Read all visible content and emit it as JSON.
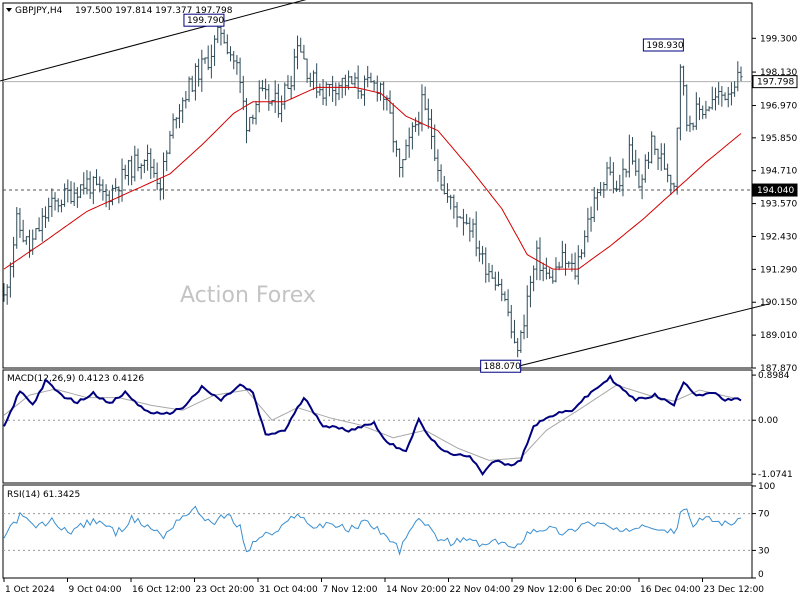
{
  "header": {
    "symbol_label": "GBPJPY,H4",
    "ohlc": "197.500 197.814 197.377 197.798"
  },
  "watermark": "Action Forex",
  "colors": {
    "price_line": "#2e4a57",
    "sma": "#d40000",
    "macd": "#00007f",
    "macd_signal": "#a8a8a8",
    "rsi": "#3b8fd0",
    "trendline": "#000000"
  },
  "chart_data": [
    {
      "type": "ohlc",
      "panel": "price",
      "yticks": [
        "199.300",
        "198.130",
        "196.970",
        "195.850",
        "194.710",
        "193.570",
        "192.430",
        "191.290",
        "190.150",
        "189.010",
        "187.870"
      ],
      "ylim": [
        187.87,
        200.49
      ],
      "current_price_label": "197.798",
      "current_price": 197.798,
      "support_level_label": "194.040",
      "support_level": 194.04,
      "annotations": [
        {
          "text": "199.790",
          "value": 199.79,
          "kind": "swing-high"
        },
        {
          "text": "198.930",
          "value": 198.93,
          "kind": "swing-high"
        },
        {
          "text": "188.070",
          "value": 188.07,
          "kind": "swing-low"
        }
      ],
      "path_keypoints": [
        {
          "t": 0,
          "v": 190.3
        },
        {
          "t": 4,
          "v": 192.9
        },
        {
          "t": 8,
          "v": 192.0
        },
        {
          "t": 14,
          "v": 193.4
        },
        {
          "t": 20,
          "v": 193.9
        },
        {
          "t": 26,
          "v": 194.3
        },
        {
          "t": 32,
          "v": 193.8
        },
        {
          "t": 38,
          "v": 194.6
        },
        {
          "t": 44,
          "v": 195.3
        },
        {
          "t": 49,
          "v": 194.3
        },
        {
          "t": 54,
          "v": 196.8
        },
        {
          "t": 60,
          "v": 198.0
        },
        {
          "t": 64,
          "v": 198.6
        },
        {
          "t": 68,
          "v": 199.6
        },
        {
          "t": 73,
          "v": 198.3
        },
        {
          "t": 76,
          "v": 196.4
        },
        {
          "t": 80,
          "v": 197.3
        },
        {
          "t": 86,
          "v": 197.0
        },
        {
          "t": 90,
          "v": 198.0
        },
        {
          "t": 92,
          "v": 199.3
        },
        {
          "t": 96,
          "v": 197.9
        },
        {
          "t": 100,
          "v": 197.5
        },
        {
          "t": 106,
          "v": 197.8
        },
        {
          "t": 112,
          "v": 197.6
        },
        {
          "t": 118,
          "v": 197.7
        },
        {
          "t": 121,
          "v": 196.5
        },
        {
          "t": 124,
          "v": 194.6
        },
        {
          "t": 128,
          "v": 196.0
        },
        {
          "t": 131,
          "v": 197.0
        },
        {
          "t": 134,
          "v": 196.0
        },
        {
          "t": 138,
          "v": 193.9
        },
        {
          "t": 142,
          "v": 193.3
        },
        {
          "t": 146,
          "v": 192.9
        },
        {
          "t": 150,
          "v": 191.6
        },
        {
          "t": 155,
          "v": 190.9
        },
        {
          "t": 158,
          "v": 189.8
        },
        {
          "t": 160,
          "v": 188.5
        },
        {
          "t": 162,
          "v": 188.9
        },
        {
          "t": 164,
          "v": 190.3
        },
        {
          "t": 167,
          "v": 191.7
        },
        {
          "t": 171,
          "v": 190.9
        },
        {
          "t": 175,
          "v": 191.6
        },
        {
          "t": 179,
          "v": 191.2
        },
        {
          "t": 183,
          "v": 193.0
        },
        {
          "t": 186,
          "v": 193.8
        },
        {
          "t": 189,
          "v": 194.9
        },
        {
          "t": 192,
          "v": 193.9
        },
        {
          "t": 196,
          "v": 195.3
        },
        {
          "t": 199,
          "v": 194.2
        },
        {
          "t": 203,
          "v": 195.6
        },
        {
          "t": 207,
          "v": 194.9
        },
        {
          "t": 210,
          "v": 194.3
        },
        {
          "t": 212,
          "v": 198.5
        },
        {
          "t": 214,
          "v": 196.4
        },
        {
          "t": 218,
          "v": 196.8
        },
        {
          "t": 222,
          "v": 197.1
        },
        {
          "t": 226,
          "v": 197.4
        },
        {
          "t": 229,
          "v": 197.8
        },
        {
          "t": 231,
          "v": 197.8
        }
      ],
      "sma_keypoints": [
        {
          "t": 0,
          "v": 191.3
        },
        {
          "t": 12,
          "v": 192.2
        },
        {
          "t": 26,
          "v": 193.3
        },
        {
          "t": 40,
          "v": 194.0
        },
        {
          "t": 52,
          "v": 194.6
        },
        {
          "t": 62,
          "v": 195.6
        },
        {
          "t": 72,
          "v": 196.7
        },
        {
          "t": 78,
          "v": 197.1
        },
        {
          "t": 88,
          "v": 197.1
        },
        {
          "t": 98,
          "v": 197.6
        },
        {
          "t": 110,
          "v": 197.6
        },
        {
          "t": 118,
          "v": 197.4
        },
        {
          "t": 126,
          "v": 196.6
        },
        {
          "t": 136,
          "v": 196.1
        },
        {
          "t": 146,
          "v": 194.8
        },
        {
          "t": 156,
          "v": 193.4
        },
        {
          "t": 164,
          "v": 191.8
        },
        {
          "t": 172,
          "v": 191.3
        },
        {
          "t": 180,
          "v": 191.3
        },
        {
          "t": 190,
          "v": 192.1
        },
        {
          "t": 200,
          "v": 193.0
        },
        {
          "t": 210,
          "v": 194.0
        },
        {
          "t": 220,
          "v": 195.0
        },
        {
          "t": 231,
          "v": 196.0
        }
      ],
      "trendlines": [
        {
          "from": {
            "t": -2,
            "v": 197.8
          },
          "to": {
            "t": 100,
            "v": 200.8
          }
        },
        {
          "from": {
            "t": 160,
            "v": 187.9
          },
          "to": {
            "t": 240,
            "v": 190.1
          }
        }
      ]
    },
    {
      "type": "line",
      "panel": "macd",
      "label": "MACD(12,26,9) 0.4123 0.4126",
      "yticks": [
        "0.8984",
        "0.00",
        "-1.0741"
      ],
      "ylim": [
        -1.25,
        0.98
      ],
      "macd_keypoints": [
        {
          "t": 0,
          "v": -0.15
        },
        {
          "t": 5,
          "v": 0.6
        },
        {
          "t": 9,
          "v": 0.3
        },
        {
          "t": 13,
          "v": 0.78
        },
        {
          "t": 18,
          "v": 0.5
        },
        {
          "t": 23,
          "v": 0.35
        },
        {
          "t": 28,
          "v": 0.55
        },
        {
          "t": 33,
          "v": 0.32
        },
        {
          "t": 38,
          "v": 0.55
        },
        {
          "t": 44,
          "v": 0.2
        },
        {
          "t": 50,
          "v": 0.1
        },
        {
          "t": 56,
          "v": 0.25
        },
        {
          "t": 62,
          "v": 0.65
        },
        {
          "t": 68,
          "v": 0.4
        },
        {
          "t": 74,
          "v": 0.7
        },
        {
          "t": 78,
          "v": 0.55
        },
        {
          "t": 82,
          "v": -0.3
        },
        {
          "t": 88,
          "v": -0.2
        },
        {
          "t": 94,
          "v": 0.45
        },
        {
          "t": 100,
          "v": -0.1
        },
        {
          "t": 108,
          "v": -0.2
        },
        {
          "t": 116,
          "v": -0.05
        },
        {
          "t": 120,
          "v": -0.45
        },
        {
          "t": 126,
          "v": -0.6
        },
        {
          "t": 130,
          "v": 0.0
        },
        {
          "t": 134,
          "v": -0.4
        },
        {
          "t": 140,
          "v": -0.7
        },
        {
          "t": 146,
          "v": -0.7
        },
        {
          "t": 150,
          "v": -1.05
        },
        {
          "t": 154,
          "v": -0.8
        },
        {
          "t": 158,
          "v": -0.9
        },
        {
          "t": 162,
          "v": -0.8
        },
        {
          "t": 166,
          "v": -0.1
        },
        {
          "t": 172,
          "v": 0.1
        },
        {
          "t": 178,
          "v": 0.2
        },
        {
          "t": 184,
          "v": 0.55
        },
        {
          "t": 190,
          "v": 0.85
        },
        {
          "t": 194,
          "v": 0.6
        },
        {
          "t": 198,
          "v": 0.4
        },
        {
          "t": 204,
          "v": 0.5
        },
        {
          "t": 210,
          "v": 0.3
        },
        {
          "t": 213,
          "v": 0.78
        },
        {
          "t": 217,
          "v": 0.5
        },
        {
          "t": 222,
          "v": 0.55
        },
        {
          "t": 226,
          "v": 0.4
        },
        {
          "t": 231,
          "v": 0.41
        }
      ],
      "signal_keypoints": [
        {
          "t": 0,
          "v": 0.1
        },
        {
          "t": 8,
          "v": 0.5
        },
        {
          "t": 16,
          "v": 0.62
        },
        {
          "t": 26,
          "v": 0.45
        },
        {
          "t": 36,
          "v": 0.45
        },
        {
          "t": 46,
          "v": 0.3
        },
        {
          "t": 56,
          "v": 0.2
        },
        {
          "t": 66,
          "v": 0.5
        },
        {
          "t": 76,
          "v": 0.6
        },
        {
          "t": 84,
          "v": 0.0
        },
        {
          "t": 92,
          "v": 0.25
        },
        {
          "t": 102,
          "v": 0.05
        },
        {
          "t": 112,
          "v": -0.1
        },
        {
          "t": 122,
          "v": -0.35
        },
        {
          "t": 132,
          "v": -0.2
        },
        {
          "t": 142,
          "v": -0.55
        },
        {
          "t": 152,
          "v": -0.8
        },
        {
          "t": 162,
          "v": -0.75
        },
        {
          "t": 170,
          "v": -0.2
        },
        {
          "t": 180,
          "v": 0.2
        },
        {
          "t": 192,
          "v": 0.7
        },
        {
          "t": 202,
          "v": 0.5
        },
        {
          "t": 210,
          "v": 0.38
        },
        {
          "t": 218,
          "v": 0.6
        },
        {
          "t": 231,
          "v": 0.41
        }
      ]
    },
    {
      "type": "line",
      "panel": "rsi",
      "label": "RSI(14) 61.3425",
      "yticks": [
        "100",
        "70",
        "30",
        "0"
      ],
      "ylim": [
        0,
        100
      ],
      "levels": [
        70,
        30
      ],
      "rsi_keypoints": [
        {
          "t": 0,
          "v": 45
        },
        {
          "t": 5,
          "v": 68
        },
        {
          "t": 10,
          "v": 55
        },
        {
          "t": 15,
          "v": 62
        },
        {
          "t": 20,
          "v": 50
        },
        {
          "t": 25,
          "v": 58
        },
        {
          "t": 30,
          "v": 63
        },
        {
          "t": 35,
          "v": 48
        },
        {
          "t": 40,
          "v": 64
        },
        {
          "t": 46,
          "v": 55
        },
        {
          "t": 50,
          "v": 45
        },
        {
          "t": 55,
          "v": 66
        },
        {
          "t": 60,
          "v": 74
        },
        {
          "t": 65,
          "v": 60
        },
        {
          "t": 70,
          "v": 68
        },
        {
          "t": 74,
          "v": 55
        },
        {
          "t": 76,
          "v": 28
        },
        {
          "t": 80,
          "v": 45
        },
        {
          "t": 86,
          "v": 50
        },
        {
          "t": 92,
          "v": 72
        },
        {
          "t": 96,
          "v": 55
        },
        {
          "t": 102,
          "v": 60
        },
        {
          "t": 108,
          "v": 52
        },
        {
          "t": 114,
          "v": 62
        },
        {
          "t": 120,
          "v": 45
        },
        {
          "t": 124,
          "v": 30
        },
        {
          "t": 128,
          "v": 55
        },
        {
          "t": 131,
          "v": 65
        },
        {
          "t": 135,
          "v": 45
        },
        {
          "t": 140,
          "v": 38
        },
        {
          "t": 146,
          "v": 42
        },
        {
          "t": 150,
          "v": 35
        },
        {
          "t": 156,
          "v": 40
        },
        {
          "t": 160,
          "v": 30
        },
        {
          "t": 164,
          "v": 50
        },
        {
          "t": 170,
          "v": 55
        },
        {
          "t": 176,
          "v": 48
        },
        {
          "t": 182,
          "v": 60
        },
        {
          "t": 188,
          "v": 58
        },
        {
          "t": 194,
          "v": 48
        },
        {
          "t": 200,
          "v": 60
        },
        {
          "t": 206,
          "v": 55
        },
        {
          "t": 210,
          "v": 48
        },
        {
          "t": 213,
          "v": 78
        },
        {
          "t": 216,
          "v": 58
        },
        {
          "t": 220,
          "v": 65
        },
        {
          "t": 226,
          "v": 60
        },
        {
          "t": 231,
          "v": 61.3
        }
      ]
    }
  ],
  "time_axis": {
    "labels": [
      "1 Oct 2024",
      "9 Oct 04:00",
      "16 Oct 12:00",
      "23 Oct 20:00",
      "31 Oct 04:00",
      "7 Nov 12:00",
      "14 Nov 20:00",
      "22 Nov 04:00",
      "29 Nov 12:00",
      "6 Dec 20:00",
      "16 Dec 04:00",
      "23 Dec 12:00"
    ]
  }
}
